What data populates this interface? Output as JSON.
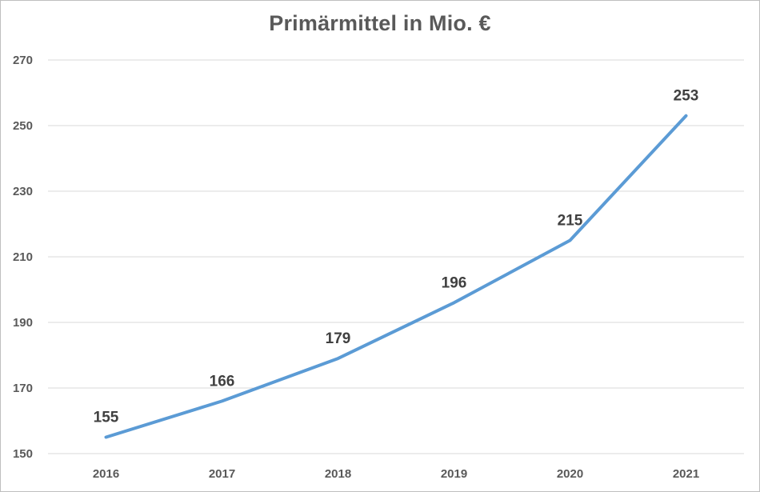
{
  "chart_data": {
    "type": "line",
    "title": "Primärmittel in Mio. €",
    "xlabel": "",
    "ylabel": "",
    "categories": [
      "2016",
      "2017",
      "2018",
      "2019",
      "2020",
      "2021"
    ],
    "series": [
      {
        "values": [
          155,
          166,
          179,
          196,
          215,
          253
        ],
        "color": "#5b9bd5"
      }
    ],
    "ylim": [
      150,
      270
    ],
    "yticks": [
      150,
      170,
      190,
      210,
      230,
      250,
      270
    ],
    "grid": true,
    "data_labels": true,
    "legend": "none"
  }
}
